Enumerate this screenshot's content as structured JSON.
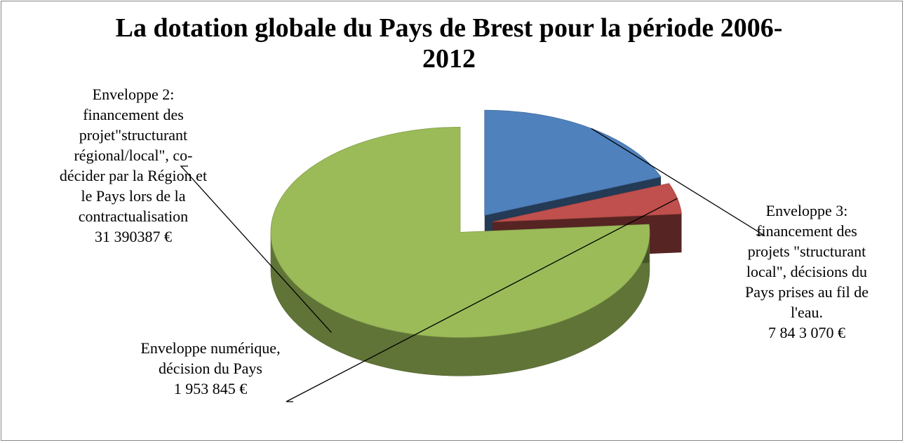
{
  "chart_data": {
    "type": "pie3d",
    "title": "La dotation globale du Pays de Brest pour la période 2006-2012",
    "categories": [
      "Enveloppe 3: financement des projets \"structurant local\", décisions du Pays prises au fil de l'eau.",
      "Enveloppe numérique, décision du Pays",
      "Enveloppe 2: financement des projet\"structurant régional/local\", co-décider par  la Région et le Pays lors de la contractualisation"
    ],
    "values": [
      7843070,
      1953845,
      31390387
    ],
    "value_labels": [
      "7 84 3 070 €",
      "1 953 845 €",
      "31 390387 €"
    ],
    "colors": [
      "#4f81bd",
      "#c0504d",
      "#9bbb59"
    ]
  }
}
